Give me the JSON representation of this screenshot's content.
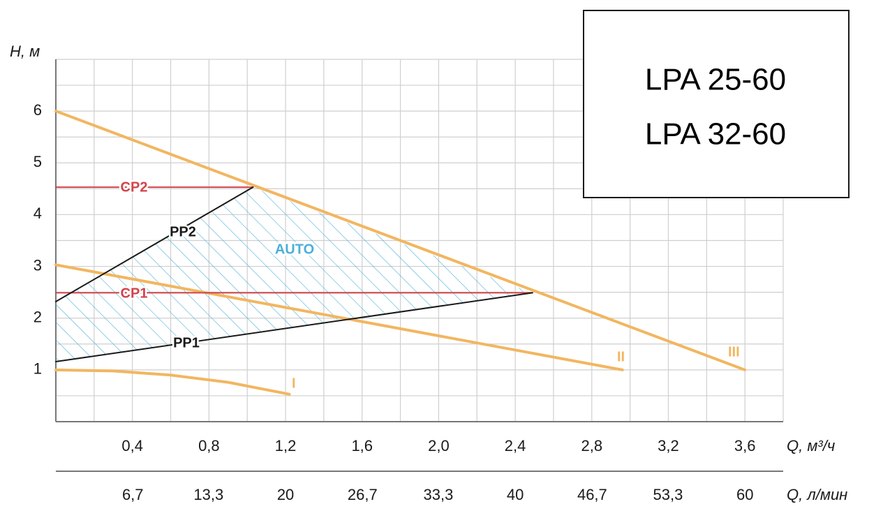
{
  "chart_data": {
    "type": "line",
    "models": [
      "LPA 25-60",
      "LPA 32-60"
    ],
    "ylabel": "H, м",
    "xlabel": "Q, м³/ч",
    "x2label": "Q, л/мин",
    "xlim": [
      0,
      3.8
    ],
    "ylim": [
      0,
      7
    ],
    "x2lim": [
      0,
      63.33
    ],
    "xgrid_step": 0.2,
    "ygrid_step": 0.5,
    "grid": true,
    "yticks": [
      1,
      2,
      3,
      4,
      5,
      6
    ],
    "xticks": [
      {
        "value": 0.4,
        "label": "0,4"
      },
      {
        "value": 0.8,
        "label": "0,8"
      },
      {
        "value": 1.2,
        "label": "1,2"
      },
      {
        "value": 1.6,
        "label": "1,6"
      },
      {
        "value": 2.0,
        "label": "2,0"
      },
      {
        "value": 2.4,
        "label": "2,4"
      },
      {
        "value": 2.8,
        "label": "2,8"
      },
      {
        "value": 3.2,
        "label": "3,2"
      },
      {
        "value": 3.6,
        "label": "3,6"
      }
    ],
    "x2ticks": [
      {
        "value": 6.7,
        "label": "6,7"
      },
      {
        "value": 13.3,
        "label": "13,3"
      },
      20,
      {
        "value": 26.7,
        "label": "26,7"
      },
      {
        "value": 33.3,
        "label": "33,3"
      },
      40,
      {
        "value": 46.7,
        "label": "46,7"
      },
      {
        "value": 53.3,
        "label": "53,3"
      },
      60
    ],
    "series": [
      {
        "name": "I",
        "color": "#f2b660",
        "x": [
          0,
          0.3,
          0.6,
          0.9,
          1.22
        ],
        "values": [
          1.0,
          0.98,
          0.9,
          0.76,
          0.53
        ]
      },
      {
        "name": "II",
        "color": "#f2b660",
        "x": [
          0,
          2.96
        ],
        "values": [
          3.03,
          1.0
        ]
      },
      {
        "name": "III",
        "color": "#f2b660",
        "x": [
          0,
          3.6
        ],
        "values": [
          6.0,
          1.0
        ]
      },
      {
        "name": "CP1",
        "color": "#d2434a",
        "x": [
          0,
          2.49
        ],
        "values": [
          2.49,
          2.49
        ]
      },
      {
        "name": "CP2",
        "color": "#d2434a",
        "x": [
          0,
          1.03
        ],
        "values": [
          4.53,
          4.53
        ]
      },
      {
        "name": "PP1",
        "color": "#1a1a1a",
        "x": [
          0,
          2.49
        ],
        "values": [
          1.16,
          2.49
        ]
      },
      {
        "name": "PP2",
        "color": "#1a1a1a",
        "x": [
          0,
          1.03
        ],
        "values": [
          2.32,
          4.53
        ]
      }
    ],
    "auto": {
      "name": "AUTO",
      "color": "#4bb0d8"
    }
  }
}
